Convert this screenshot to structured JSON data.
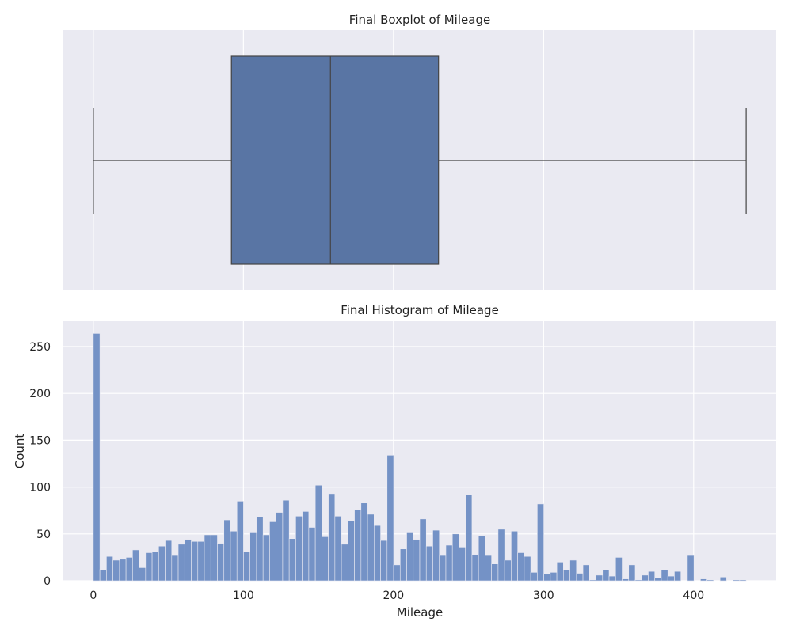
{
  "chart_data": [
    {
      "type": "boxplot",
      "title": "Final Boxplot of Mileage",
      "xlim": [
        -20,
        455
      ],
      "x_ticks": [
        0,
        100,
        200,
        300,
        400
      ],
      "grid": true,
      "box_color": "#5975a4",
      "stats": {
        "whisker_low": 0,
        "q1": 92,
        "median": 158,
        "q3": 230,
        "whisker_high": 435
      }
    },
    {
      "type": "bar",
      "title": "Final Histogram of Mileage",
      "xlabel": "Mileage",
      "ylabel": "Count",
      "xlim": [
        -20,
        455
      ],
      "ylim": [
        0,
        277
      ],
      "x_ticks": [
        0,
        100,
        200,
        300,
        400
      ],
      "y_ticks": [
        0,
        50,
        100,
        150,
        200,
        250
      ],
      "grid": true,
      "bar_color": "#7492c6",
      "bin_width": 4.35,
      "x_start": 0,
      "values": [
        264,
        12,
        26,
        22,
        23,
        25,
        33,
        14,
        30,
        31,
        37,
        43,
        27,
        39,
        44,
        42,
        42,
        49,
        49,
        40,
        65,
        53,
        85,
        31,
        52,
        68,
        49,
        63,
        73,
        86,
        45,
        69,
        74,
        57,
        102,
        47,
        93,
        69,
        39,
        64,
        76,
        83,
        71,
        59,
        43,
        134,
        17,
        34,
        52,
        44,
        66,
        37,
        54,
        27,
        38,
        50,
        36,
        92,
        28,
        48,
        27,
        18,
        55,
        22,
        53,
        30,
        26,
        9,
        82,
        7,
        9,
        20,
        12,
        22,
        8,
        17,
        1,
        6,
        12,
        5,
        25,
        2,
        17,
        1,
        6,
        10,
        3,
        12,
        5,
        10,
        0,
        27,
        0,
        2,
        1,
        0,
        4,
        0,
        1,
        1
      ]
    }
  ],
  "colors": {
    "panel_bg": "#eaeaf2",
    "grid": "#ffffff",
    "edge": "#444444"
  }
}
